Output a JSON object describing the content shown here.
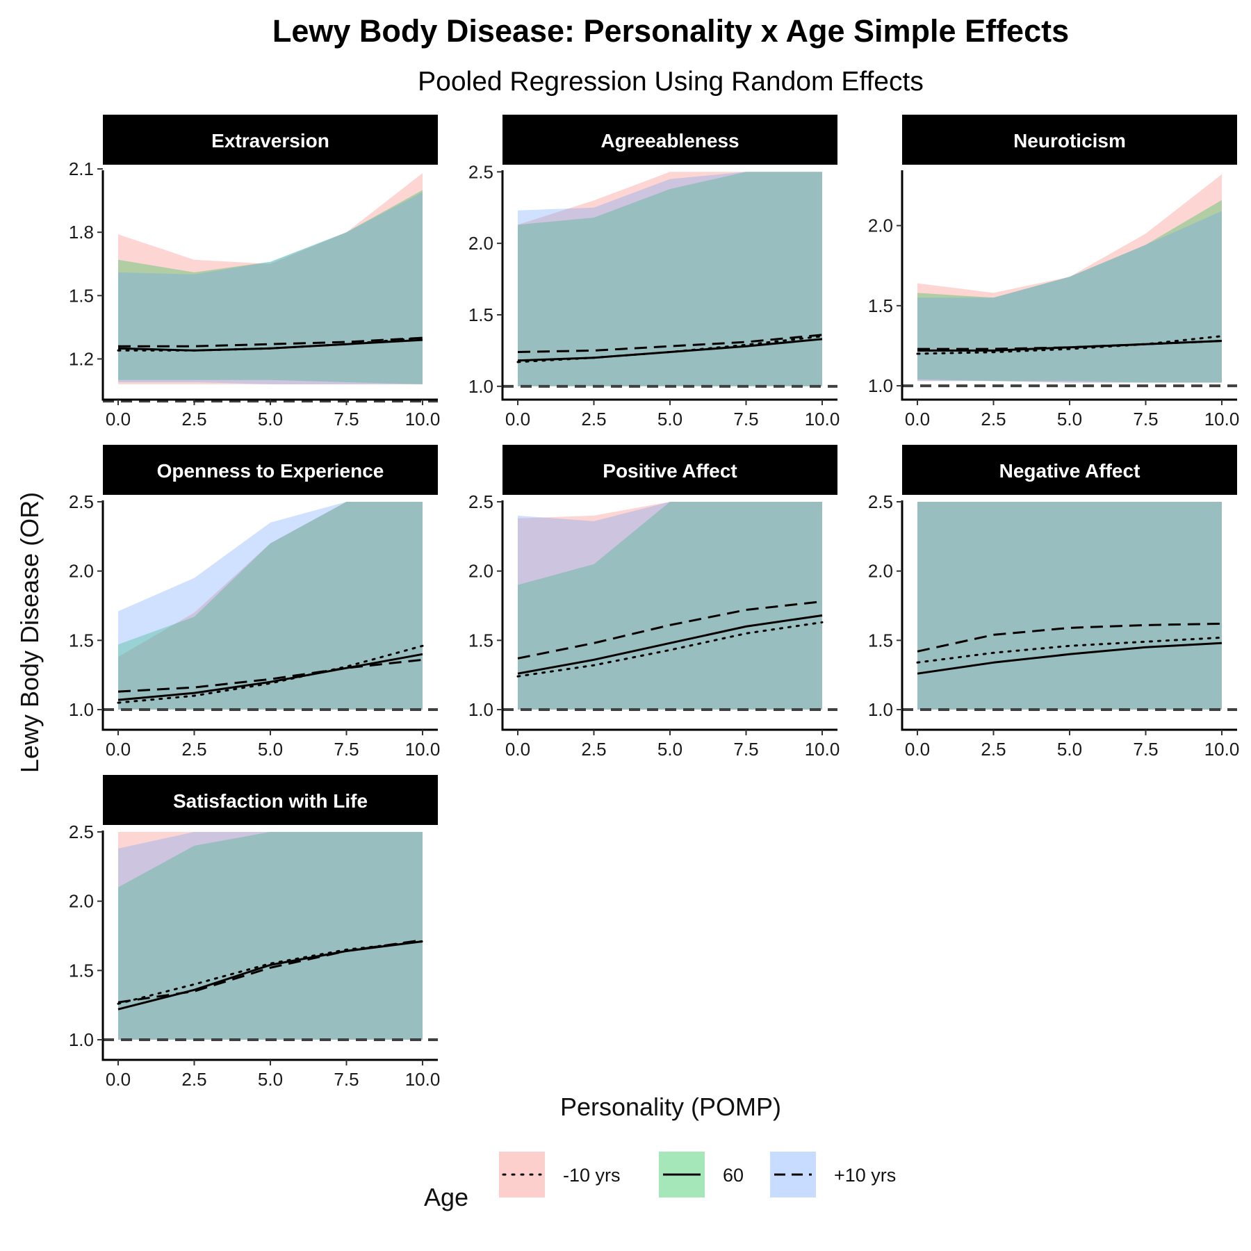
{
  "chart_data": {
    "type": "line",
    "title": "Lewy Body Disease: Personality x Age Simple Effects",
    "subtitle": "Pooled Regression Using Random Effects",
    "xlabel": "Personality (POMP)",
    "ylabel": "Lewy Body Disease (OR)",
    "grid": false,
    "legend": {
      "title": "Age",
      "placement": "bottom",
      "entries": [
        {
          "label": "-10 yrs",
          "line": "dotted",
          "fill": "#F8766D"
        },
        {
          "label": "60",
          "line": "solid",
          "fill": "#00BA38"
        },
        {
          "label": "+10 yrs",
          "line": "dashed",
          "fill": "#619CFF"
        }
      ]
    },
    "reference_line": 1.0,
    "colors": {
      "-10 yrs": "#F8766D",
      "60": "#00BA38",
      "+10 yrs": "#619CFF",
      "overlap": "#A6BABE"
    },
    "x_ticks": [
      "0.0",
      "2.5",
      "5.0",
      "7.5",
      "10.0"
    ],
    "xlim": [
      0,
      10
    ],
    "panels": [
      {
        "label": "Extraversion",
        "ylim": [
          1.05,
          2.12
        ],
        "y_ticks": [
          {
            "v": 1.2,
            "t": "1.2"
          },
          {
            "v": 1.5,
            "t": "1.5"
          },
          {
            "v": 1.8,
            "t": "1.8"
          },
          {
            "v": 2.1,
            "t": "2.1"
          }
        ],
        "x": [
          0,
          2.5,
          5,
          7.5,
          10
        ],
        "series": [
          {
            "name": "-10 yrs",
            "values": [
              1.24,
              1.24,
              1.25,
              1.27,
              1.3
            ],
            "lower": [
              1.08,
              1.08,
              1.08,
              1.08,
              1.08
            ],
            "upper": [
              1.79,
              1.67,
              1.65,
              1.8,
              2.08
            ]
          },
          {
            "name": "60",
            "values": [
              1.25,
              1.24,
              1.25,
              1.27,
              1.29
            ],
            "lower": [
              1.1,
              1.1,
              1.1,
              1.09,
              1.08
            ],
            "upper": [
              1.67,
              1.61,
              1.66,
              1.8,
              2.0
            ]
          },
          {
            "name": "+10 yrs",
            "values": [
              1.26,
              1.26,
              1.27,
              1.28,
              1.3
            ],
            "lower": [
              1.09,
              1.09,
              1.08,
              1.08,
              1.08
            ],
            "upper": [
              1.61,
              1.6,
              1.66,
              1.8,
              1.99
            ]
          }
        ]
      },
      {
        "label": "Agreeableness",
        "ylim": [
          0.97,
          2.55
        ],
        "y_ticks": [
          {
            "v": 1.0,
            "t": "1.0"
          },
          {
            "v": 1.5,
            "t": "1.5"
          },
          {
            "v": 2.0,
            "t": "2.0"
          },
          {
            "v": 2.5,
            "t": "2.5"
          }
        ],
        "x": [
          0,
          2.5,
          5,
          7.5,
          10
        ],
        "series": [
          {
            "name": "-10 yrs",
            "values": [
              1.17,
              1.2,
              1.24,
              1.29,
              1.35
            ],
            "lower": [
              1.0,
              1.0,
              1.0,
              1.0,
              1.0
            ],
            "upper": [
              2.13,
              2.3,
              2.5,
              2.5,
              2.5
            ]
          },
          {
            "name": "60",
            "values": [
              1.18,
              1.2,
              1.24,
              1.28,
              1.33
            ],
            "lower": [
              1.0,
              1.0,
              1.0,
              1.0,
              1.0
            ],
            "upper": [
              2.13,
              2.18,
              2.38,
              2.5,
              2.5
            ]
          },
          {
            "name": "+10 yrs",
            "values": [
              1.24,
              1.25,
              1.28,
              1.31,
              1.36
            ],
            "lower": [
              1.0,
              1.0,
              1.0,
              1.0,
              1.0
            ],
            "upper": [
              2.23,
              2.25,
              2.45,
              2.5,
              2.5
            ]
          }
        ]
      },
      {
        "label": "Neuroticism",
        "ylim": [
          0.97,
          2.38
        ],
        "y_ticks": [
          {
            "v": 1.0,
            "t": "1.0"
          },
          {
            "v": 1.5,
            "t": "1.5"
          },
          {
            "v": 2.0,
            "t": "2.0"
          }
        ],
        "x": [
          0,
          2.5,
          5,
          7.5,
          10
        ],
        "series": [
          {
            "name": "-10 yrs",
            "values": [
              1.2,
              1.21,
              1.23,
              1.26,
              1.31
            ],
            "lower": [
              1.03,
              1.03,
              1.02,
              1.02,
              1.02
            ],
            "upper": [
              1.64,
              1.58,
              1.68,
              1.95,
              2.32
            ]
          },
          {
            "name": "60",
            "values": [
              1.22,
              1.22,
              1.24,
              1.26,
              1.28
            ],
            "lower": [
              1.04,
              1.03,
              1.03,
              1.02,
              1.02
            ],
            "upper": [
              1.58,
              1.55,
              1.68,
              1.88,
              2.16
            ]
          },
          {
            "name": "+10 yrs",
            "values": [
              1.23,
              1.23,
              1.24,
              1.26,
              1.28
            ],
            "lower": [
              1.03,
              1.03,
              1.02,
              1.02,
              1.02
            ],
            "upper": [
              1.55,
              1.55,
              1.68,
              1.88,
              2.09
            ]
          }
        ]
      },
      {
        "label": "Openness to Experience",
        "ylim": [
          0.92,
          2.55
        ],
        "y_ticks": [
          {
            "v": 1.0,
            "t": "1.0"
          },
          {
            "v": 1.5,
            "t": "1.5"
          },
          {
            "v": 2.0,
            "t": "2.0"
          },
          {
            "v": 2.5,
            "t": "2.5"
          }
        ],
        "x": [
          0,
          2.5,
          5,
          7.5,
          10
        ],
        "series": [
          {
            "name": "-10 yrs",
            "values": [
              1.05,
              1.1,
              1.19,
              1.31,
              1.46
            ],
            "lower": [
              1.0,
              1.0,
              1.0,
              1.0,
              1.0
            ],
            "upper": [
              1.38,
              1.7,
              2.2,
              2.5,
              2.5
            ]
          },
          {
            "name": "60",
            "values": [
              1.07,
              1.12,
              1.2,
              1.3,
              1.4
            ],
            "lower": [
              1.0,
              1.0,
              1.0,
              1.0,
              1.0
            ],
            "upper": [
              1.47,
              1.67,
              2.2,
              2.5,
              2.5
            ]
          },
          {
            "name": "+10 yrs",
            "values": [
              1.13,
              1.16,
              1.22,
              1.3,
              1.36
            ],
            "lower": [
              1.0,
              1.0,
              1.0,
              1.0,
              1.0
            ],
            "upper": [
              1.71,
              1.95,
              2.35,
              2.5,
              2.5
            ]
          }
        ]
      },
      {
        "label": "Positive Affect",
        "ylim": [
          0.92,
          2.55
        ],
        "y_ticks": [
          {
            "v": 1.0,
            "t": "1.0"
          },
          {
            "v": 1.5,
            "t": "1.5"
          },
          {
            "v": 2.0,
            "t": "2.0"
          },
          {
            "v": 2.5,
            "t": "2.5"
          }
        ],
        "x": [
          0,
          2.5,
          5,
          7.5,
          10
        ],
        "series": [
          {
            "name": "-10 yrs",
            "values": [
              1.24,
              1.32,
              1.43,
              1.55,
              1.63
            ],
            "lower": [
              1.0,
              1.0,
              1.0,
              1.0,
              1.0
            ],
            "upper": [
              2.38,
              2.4,
              2.5,
              2.5,
              2.5
            ]
          },
          {
            "name": "60",
            "values": [
              1.26,
              1.36,
              1.48,
              1.6,
              1.68
            ],
            "lower": [
              1.0,
              1.0,
              1.0,
              1.0,
              1.0
            ],
            "upper": [
              1.9,
              2.05,
              2.5,
              2.5,
              2.5
            ]
          },
          {
            "name": "+10 yrs",
            "values": [
              1.37,
              1.48,
              1.61,
              1.72,
              1.78
            ],
            "lower": [
              1.0,
              1.0,
              1.0,
              1.0,
              1.0
            ],
            "upper": [
              2.4,
              2.36,
              2.5,
              2.5,
              2.5
            ]
          }
        ]
      },
      {
        "label": "Negative Affect",
        "ylim": [
          0.92,
          2.55
        ],
        "y_ticks": [
          {
            "v": 1.0,
            "t": "1.0"
          },
          {
            "v": 1.5,
            "t": "1.5"
          },
          {
            "v": 2.0,
            "t": "2.0"
          },
          {
            "v": 2.5,
            "t": "2.5"
          }
        ],
        "x": [
          0,
          2.5,
          5,
          7.5,
          10
        ],
        "series": [
          {
            "name": "-10 yrs",
            "values": [
              1.34,
              1.41,
              1.46,
              1.49,
              1.52
            ],
            "lower": [
              1.0,
              1.0,
              1.0,
              1.0,
              1.0
            ],
            "upper": [
              2.5,
              2.5,
              2.5,
              2.5,
              2.5
            ]
          },
          {
            "name": "60",
            "values": [
              1.26,
              1.34,
              1.4,
              1.45,
              1.48
            ],
            "lower": [
              1.0,
              1.0,
              1.0,
              1.0,
              1.0
            ],
            "upper": [
              2.5,
              2.5,
              2.5,
              2.5,
              2.5
            ]
          },
          {
            "name": "+10 yrs",
            "values": [
              1.42,
              1.54,
              1.59,
              1.61,
              1.62
            ],
            "lower": [
              1.0,
              1.0,
              1.0,
              1.0,
              1.0
            ],
            "upper": [
              2.5,
              2.5,
              2.5,
              2.5,
              2.5
            ]
          }
        ]
      },
      {
        "label": "Satisfaction with Life",
        "ylim": [
          0.92,
          2.55
        ],
        "y_ticks": [
          {
            "v": 1.0,
            "t": "1.0"
          },
          {
            "v": 1.5,
            "t": "1.5"
          },
          {
            "v": 2.0,
            "t": "2.0"
          },
          {
            "v": 2.5,
            "t": "2.5"
          }
        ],
        "x": [
          0,
          2.5,
          5,
          7.5,
          10
        ],
        "series": [
          {
            "name": "-10 yrs",
            "values": [
              1.26,
              1.4,
              1.55,
              1.65,
              1.71
            ],
            "lower": [
              1.0,
              1.0,
              1.0,
              1.0,
              1.0
            ],
            "upper": [
              2.5,
              2.5,
              2.5,
              2.5,
              2.5
            ]
          },
          {
            "name": "60",
            "values": [
              1.22,
              1.36,
              1.54,
              1.64,
              1.71
            ],
            "lower": [
              1.0,
              1.0,
              1.0,
              1.0,
              1.0
            ],
            "upper": [
              2.1,
              2.4,
              2.5,
              2.5,
              2.5
            ]
          },
          {
            "name": "+10 yrs",
            "values": [
              1.27,
              1.35,
              1.52,
              1.64,
              1.72
            ],
            "lower": [
              1.0,
              1.0,
              1.0,
              1.0,
              1.0
            ],
            "upper": [
              2.38,
              2.5,
              2.5,
              2.5,
              2.5
            ]
          }
        ]
      }
    ]
  }
}
